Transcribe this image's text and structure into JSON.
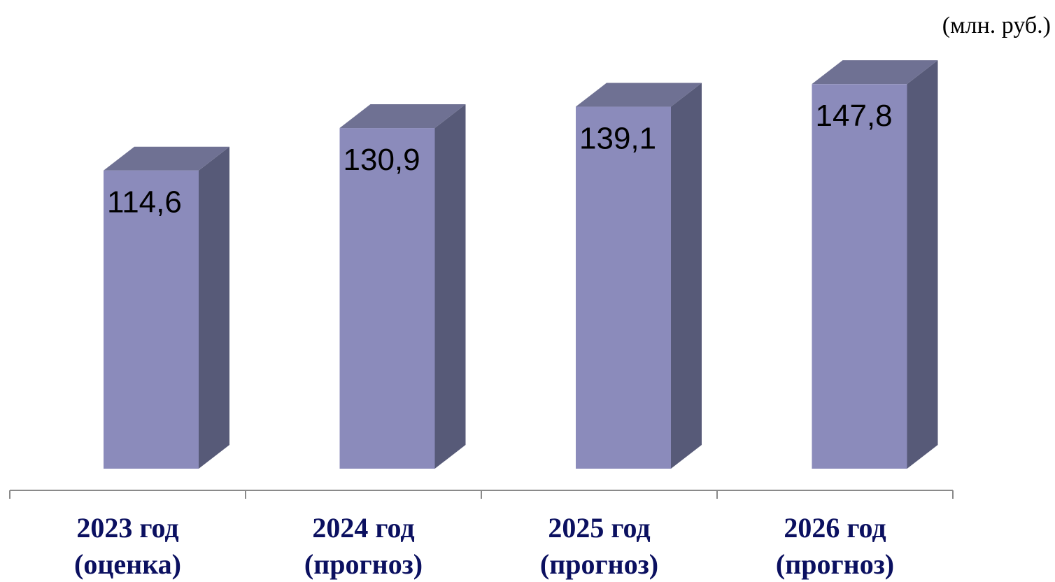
{
  "chart_data": {
    "type": "bar",
    "unit": "(млн. руб.)",
    "categories": [
      [
        "2023 год",
        "(оценка)"
      ],
      [
        "2024 год",
        "(прогноз)"
      ],
      [
        "2025 год",
        "(прогноз)"
      ],
      [
        "2026 год",
        "(прогноз)"
      ]
    ],
    "values": [
      114.6,
      130.9,
      139.1,
      147.8
    ],
    "value_labels": [
      "114,6",
      "130,9",
      "139,1",
      "147,8"
    ],
    "title": "",
    "xlabel": "",
    "ylabel": "",
    "ylim": [
      0,
      160
    ],
    "grid": false,
    "legend": "none",
    "colors": {
      "bar_front": "#8b8bbb",
      "bar_side": "#575a78",
      "bar_top": "#6f7193",
      "axis": "#8a8a8a",
      "category_text": "#0b1060"
    }
  }
}
